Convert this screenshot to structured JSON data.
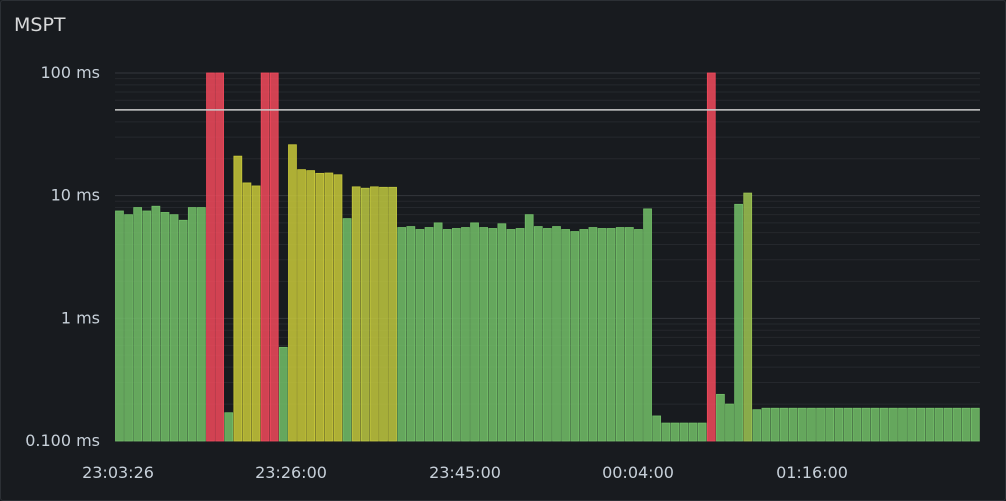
{
  "panel": {
    "title": "MSPT"
  },
  "chart_data": {
    "type": "bar",
    "title": "MSPT",
    "xlabel": "",
    "ylabel": "",
    "yscale": "log",
    "ylim": [
      0.1,
      100
    ],
    "grid": true,
    "threshold": 50,
    "y_ticks": [
      {
        "value": 100,
        "label": "100 ms"
      },
      {
        "value": 10,
        "label": "10 ms"
      },
      {
        "value": 1,
        "label": "1 ms"
      },
      {
        "value": 0.1,
        "label": "0.100 ms"
      }
    ],
    "x_ticks": [
      "23:03:26",
      "23:26:00",
      "23:45:00",
      "00:04:00",
      "01:16:00"
    ],
    "colors": {
      "good": "#73bf69",
      "warn": "#c9c93a",
      "bad": "#f2495c",
      "threshold": "#cccccc"
    },
    "values": [
      7.5,
      7,
      8,
      7.5,
      8.2,
      7.3,
      7,
      6.3,
      8,
      8,
      100,
      100,
      0.17,
      21,
      12.7,
      12,
      100,
      100,
      0.58,
      26,
      16.3,
      16,
      15.2,
      15.3,
      14.8,
      6.5,
      11.8,
      11.5,
      11.8,
      11.7,
      11.7,
      5.5,
      5.6,
      5.3,
      5.5,
      6,
      5.3,
      5.4,
      5.5,
      6,
      5.5,
      5.4,
      5.9,
      5.3,
      5.4,
      7,
      5.6,
      5.4,
      5.6,
      5.3,
      5.1,
      5.3,
      5.5,
      5.4,
      5.4,
      5.5,
      5.5,
      5.3,
      7.8,
      0.16,
      0.14,
      0.14,
      0.14,
      0.14,
      0.14,
      100,
      0.24,
      0.2,
      8.5,
      10.5,
      0.18,
      0.185,
      0.185,
      0.185,
      0.185,
      0.185,
      0.185,
      0.185,
      0.185,
      0.185,
      0.185,
      0.185,
      0.185,
      0.185,
      0.185,
      0.185,
      0.185,
      0.185,
      0.185,
      0.185,
      0.185,
      0.185,
      0.185,
      0.185,
      0.185
    ]
  }
}
